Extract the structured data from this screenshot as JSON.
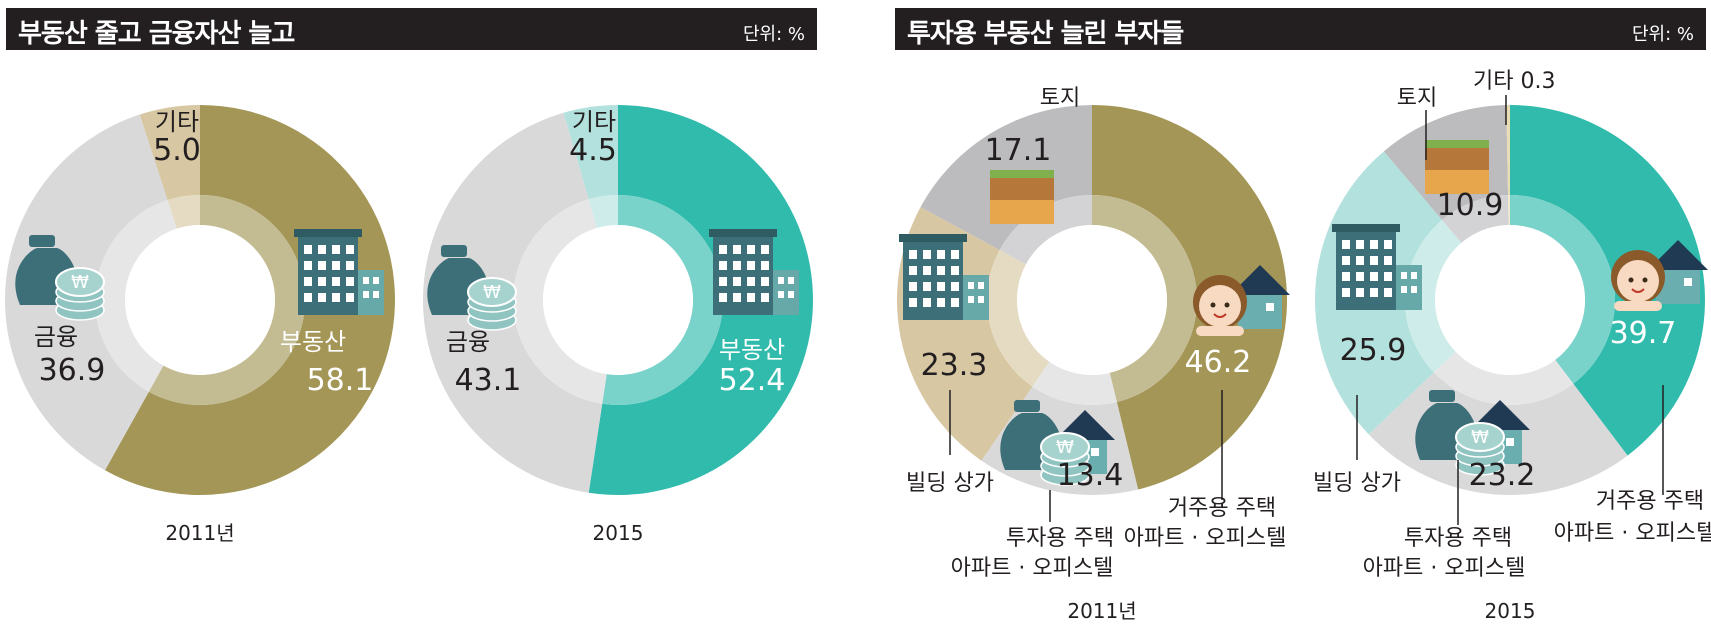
{
  "panels": [
    {
      "title": "부동산 줄고 금융자산 늘고",
      "unit": "단위: %"
    },
    {
      "title": "투자용 부동산 늘린 부자들",
      "unit": "단위: %"
    }
  ],
  "colors": {
    "olive": "#a39656",
    "teal": "#31bbad",
    "light_teal": "#b3e1dd",
    "gray": "#d9d9da",
    "dark_gray": "#bcbcbe",
    "beige": "#d7c7a3",
    "header_bg": "#231f20"
  },
  "chart_data": [
    {
      "type": "pie",
      "title": "부동산 줄고 금융자산 늘고",
      "caption": "2011년",
      "unit": "%",
      "slices": [
        {
          "name": "부동산",
          "value": 58.1,
          "value_text": "58.1",
          "color": "#a39656",
          "icon": "building-icon",
          "light_text": true
        },
        {
          "name": "금융",
          "value": 36.9,
          "value_text": "36.9",
          "color": "#d9d9da",
          "icon": "money-bag-icon"
        },
        {
          "name": "기타",
          "value": 5.0,
          "value_text": "5.0",
          "color": "#d7c7a3"
        }
      ]
    },
    {
      "type": "pie",
      "title": "부동산 줄고 금융자산 늘고",
      "caption": "2015",
      "unit": "%",
      "slices": [
        {
          "name": "부동산",
          "value": 52.4,
          "value_text": "52.4",
          "color": "#31bbad",
          "icon": "building-icon",
          "light_text": true
        },
        {
          "name": "금융",
          "value": 43.1,
          "value_text": "43.1",
          "color": "#d9d9da",
          "icon": "money-bag-icon"
        },
        {
          "name": "기타",
          "value": 4.5,
          "value_text": "4.5",
          "color": "#b3e1dd"
        }
      ]
    },
    {
      "type": "pie",
      "title": "투자용 부동산 늘린 부자들",
      "caption": "2011년",
      "unit": "%",
      "slices": [
        {
          "name": "거주용 주택 아파트 · 오피스텔",
          "name_lines": [
            "거주용 주택",
            "아파트 · 오피스텔"
          ],
          "value": 46.2,
          "value_text": "46.2",
          "color": "#a39656",
          "icon": "house-girl-icon",
          "light_text": true
        },
        {
          "name": "투자용 주택 아파트 · 오피스텔",
          "name_lines": [
            "투자용 주택",
            "아파트 · 오피스텔"
          ],
          "value": 13.4,
          "value_text": "13.4",
          "color": "#d9d9da",
          "icon": "house-money-icon"
        },
        {
          "name": "빌딩 상가",
          "name_lines": [
            "빌딩 상가"
          ],
          "value": 23.3,
          "value_text": "23.3",
          "color": "#d7c7a3",
          "icon": "building-icon"
        },
        {
          "name": "토지",
          "name_lines": [
            "토지"
          ],
          "value": 17.1,
          "value_text": "17.1",
          "color": "#bcbcbe",
          "icon": "land-icon"
        }
      ]
    },
    {
      "type": "pie",
      "title": "투자용 부동산 늘린 부자들",
      "caption": "2015",
      "unit": "%",
      "slices": [
        {
          "name": "거주용 주택 아파트 · 오피스텔",
          "name_lines": [
            "거주용 주택",
            "아파트 · 오피스텔"
          ],
          "value": 39.7,
          "value_text": "39.7",
          "color": "#31bbad",
          "icon": "house-girl-icon",
          "light_text": true
        },
        {
          "name": "투자용 주택 아파트 · 오피스텔",
          "name_lines": [
            "투자용 주택",
            "아파트 · 오피스텔"
          ],
          "value": 23.2,
          "value_text": "23.2",
          "color": "#d9d9da",
          "icon": "house-money-icon"
        },
        {
          "name": "빌딩 상가",
          "name_lines": [
            "빌딩 상가"
          ],
          "value": 25.9,
          "value_text": "25.9",
          "color": "#b3e1dd",
          "icon": "building-icon"
        },
        {
          "name": "토지",
          "name_lines": [
            "토지"
          ],
          "value": 10.9,
          "value_text": "10.9",
          "color": "#bcbcbe",
          "icon": "land-icon"
        },
        {
          "name": "기타",
          "name_lines": [
            "기타 0.3"
          ],
          "value": 0.3,
          "value_text": "",
          "color": "#e8ddb5"
        }
      ]
    }
  ]
}
